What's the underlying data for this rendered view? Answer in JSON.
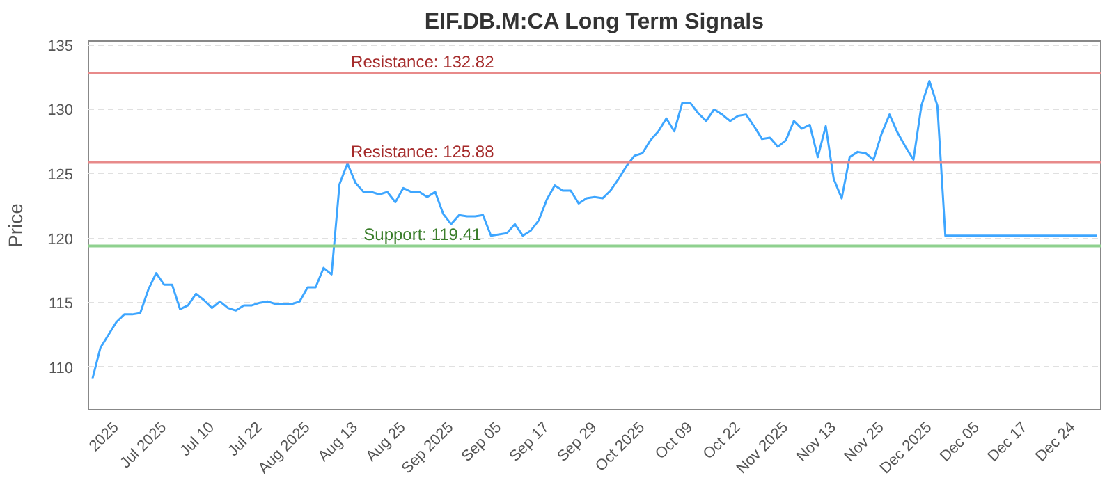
{
  "chart_data": {
    "type": "line",
    "title": "EIF.DB.M:CA Long Term Signals",
    "ylabel": "Price",
    "ylim": [
      106.7,
      135.3
    ],
    "yticks": [
      110,
      115,
      120,
      125,
      130,
      135
    ],
    "categories": [
      null,
      null,
      null,
      "2025",
      null,
      null,
      null,
      null,
      null,
      "Jul 2025",
      null,
      null,
      null,
      null,
      null,
      "Jul 10",
      null,
      null,
      null,
      null,
      null,
      "Jul 22",
      null,
      null,
      null,
      null,
      null,
      "Aug 2025",
      null,
      null,
      null,
      null,
      null,
      "Aug 13",
      null,
      null,
      null,
      null,
      null,
      "Aug 25",
      null,
      null,
      null,
      null,
      null,
      "Sep 2025",
      null,
      null,
      null,
      null,
      null,
      "Sep 05",
      null,
      null,
      null,
      null,
      null,
      "Sep 17",
      null,
      null,
      null,
      null,
      null,
      "Sep 29",
      null,
      null,
      null,
      null,
      null,
      "Oct 2025",
      null,
      null,
      null,
      null,
      null,
      "Oct 09",
      null,
      null,
      null,
      null,
      null,
      "Oct 22",
      null,
      null,
      null,
      null,
      null,
      "Nov 2025",
      null,
      null,
      null,
      null,
      null,
      "Nov 13",
      null,
      null,
      null,
      null,
      null,
      "Nov 25",
      null,
      null,
      null,
      null,
      null,
      "Dec 2025",
      null,
      null,
      null,
      null,
      null,
      "Dec 05",
      null,
      null,
      null,
      null,
      null,
      "Dec 17",
      null,
      null,
      null,
      null,
      null,
      "Dec 24",
      null,
      null,
      null
    ],
    "grid": "y",
    "marker": "none",
    "line_style": "solid",
    "series": [
      {
        "color": "#3ea6ff",
        "values": [
          109.1,
          111.5,
          112.5,
          113.5,
          114.1,
          114.1,
          114.2,
          116.0,
          117.3,
          116.4,
          116.4,
          114.5,
          114.8,
          115.7,
          115.2,
          114.6,
          115.1,
          114.6,
          114.4,
          114.8,
          114.8,
          115.0,
          115.1,
          114.9,
          114.9,
          114.9,
          115.1,
          116.2,
          116.2,
          117.7,
          117.2,
          124.2,
          125.8,
          124.3,
          123.6,
          123.6,
          123.4,
          123.6,
          122.8,
          123.9,
          123.6,
          123.6,
          123.2,
          123.6,
          121.9,
          121.1,
          121.8,
          121.7,
          121.7,
          121.8,
          120.2,
          120.3,
          120.4,
          121.1,
          120.2,
          120.6,
          121.4,
          123.0,
          124.1,
          123.7,
          123.7,
          122.7,
          123.1,
          123.2,
          123.1,
          123.7,
          124.6,
          125.6,
          126.4,
          126.6,
          127.6,
          128.3,
          129.3,
          128.3,
          130.5,
          130.5,
          129.7,
          129.1,
          130.0,
          129.6,
          129.1,
          129.5,
          129.6,
          128.7,
          127.7,
          127.8,
          127.1,
          127.6,
          129.1,
          128.5,
          128.8,
          126.3,
          128.7,
          124.6,
          123.1,
          126.3,
          126.7,
          126.6,
          126.1,
          128.1,
          129.6,
          128.2,
          127.1,
          126.1,
          130.3,
          132.2,
          130.3,
          120.2,
          120.2,
          120.2,
          120.2,
          120.2,
          120.2,
          120.2,
          120.2,
          120.2,
          120.2,
          120.2,
          120.2,
          120.2,
          120.2,
          120.2,
          120.2,
          120.2,
          120.2,
          120.2,
          120.2
        ]
      }
    ],
    "ref_lines": [
      {
        "axis": "y",
        "value": 132.82,
        "label": "Resistance: 132.82",
        "color": "#e88a8a"
      },
      {
        "axis": "y",
        "value": 125.88,
        "label": "Resistance: 125.88",
        "color": "#e88a8a"
      },
      {
        "axis": "y",
        "value": 119.41,
        "label": "Support: 119.41",
        "color": "#8fd18f"
      }
    ]
  }
}
